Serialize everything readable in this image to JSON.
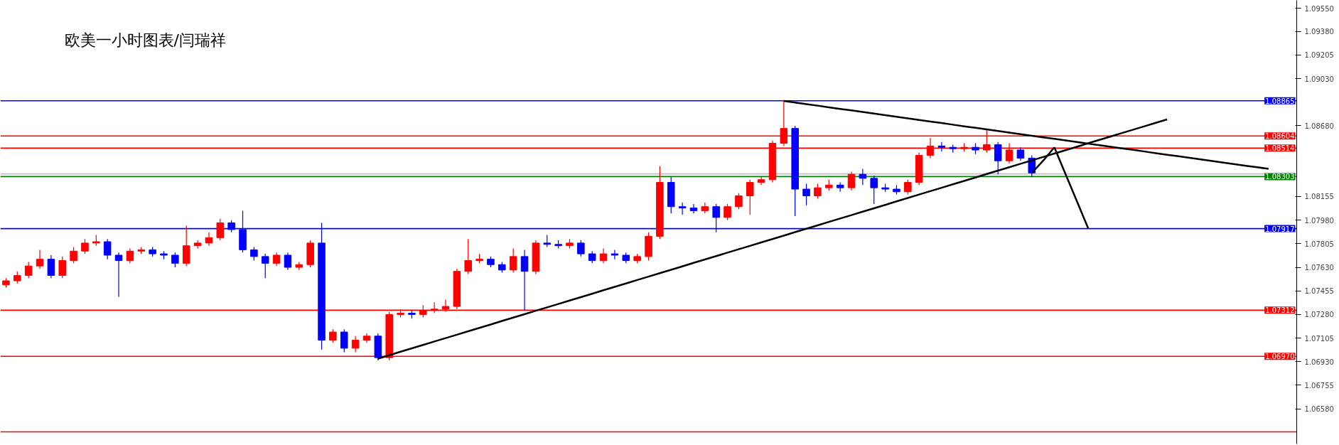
{
  "chart_data": {
    "type": "candlestick",
    "title": "欧美一小时图表/闫瑞祥",
    "categories": [
      null,
      null,
      null,
      null,
      null,
      null,
      null,
      null,
      null,
      null,
      null,
      null,
      null,
      null,
      null,
      null,
      null,
      null,
      null,
      null,
      null,
      null,
      null,
      null,
      null,
      null,
      null,
      null,
      null,
      null,
      null,
      null,
      null,
      null,
      null,
      null,
      null,
      null,
      null,
      null,
      null,
      null,
      null,
      null,
      null,
      null,
      null,
      null,
      null,
      null,
      null,
      null,
      null,
      null,
      null,
      null,
      null,
      null,
      null,
      null,
      null,
      null,
      null,
      null,
      null,
      null,
      null,
      null,
      null,
      null,
      null,
      null,
      null,
      null,
      null,
      null,
      null,
      null,
      null,
      null,
      null,
      null,
      null,
      null,
      null,
      null,
      null,
      null,
      null,
      null,
      null,
      null,
      null,
      null,
      null,
      null,
      null,
      null,
      null,
      null,
      null,
      null,
      null,
      null,
      null,
      null,
      null,
      null,
      null,
      null,
      null,
      null,
      null,
      null,
      null
    ],
    "ohlc": [
      [
        1.075,
        1.0755,
        1.0748,
        1.0753
      ],
      [
        1.0753,
        1.076,
        1.0751,
        1.0757
      ],
      [
        1.0757,
        1.0767,
        1.0755,
        1.0764
      ],
      [
        1.0764,
        1.0776,
        1.0762,
        1.0769
      ],
      [
        1.0769,
        1.0772,
        1.0755,
        1.0757
      ],
      [
        1.0757,
        1.0771,
        1.0755,
        1.0768
      ],
      [
        1.0768,
        1.0778,
        1.0766,
        1.0775
      ],
      [
        1.0775,
        1.0784,
        1.0773,
        1.0781
      ],
      [
        1.0781,
        1.0787,
        1.0779,
        1.0782
      ],
      [
        1.0782,
        1.0784,
        1.0769,
        1.0772
      ],
      [
        1.0772,
        1.0774,
        1.0741,
        1.0768
      ],
      [
        1.0768,
        1.0777,
        1.0766,
        1.0775
      ],
      [
        1.0775,
        1.0778,
        1.0773,
        1.0776
      ],
      [
        1.0776,
        1.0778,
        1.0771,
        1.0773
      ],
      [
        1.0773,
        1.0775,
        1.0769,
        1.0772
      ],
      [
        1.0772,
        1.0774,
        1.0763,
        1.0766
      ],
      [
        1.0766,
        1.0794,
        1.0764,
        1.0779
      ],
      [
        1.0779,
        1.0783,
        1.0777,
        1.0781
      ],
      [
        1.0781,
        1.0789,
        1.0779,
        1.0785
      ],
      [
        1.0785,
        1.0799,
        1.0783,
        1.0796
      ],
      [
        1.0796,
        1.0798,
        1.0789,
        1.0791
      ],
      [
        1.0791,
        1.0805,
        1.0774,
        1.0776
      ],
      [
        1.0776,
        1.0778,
        1.0768,
        1.0771
      ],
      [
        1.0771,
        1.0773,
        1.0755,
        1.0766
      ],
      [
        1.0766,
        1.0774,
        1.0764,
        1.0772
      ],
      [
        1.0772,
        1.0774,
        1.0761,
        1.0763
      ],
      [
        1.0763,
        1.0767,
        1.0761,
        1.0765
      ],
      [
        1.0765,
        1.0783,
        1.0763,
        1.0781
      ],
      [
        1.0781,
        1.0796,
        1.0702,
        1.0709
      ],
      [
        1.0709,
        1.0717,
        1.0707,
        1.0715
      ],
      [
        1.0715,
        1.0717,
        1.07,
        1.0703
      ],
      [
        1.0703,
        1.0712,
        1.07,
        1.0709
      ],
      [
        1.0709,
        1.0714,
        1.0707,
        1.0712
      ],
      [
        1.0712,
        1.0714,
        1.0694,
        1.0696
      ],
      [
        1.0696,
        1.073,
        1.0694,
        1.0728
      ],
      [
        1.0728,
        1.0732,
        1.0726,
        1.0729
      ],
      [
        1.0729,
        1.0731,
        1.0725,
        1.0728
      ],
      [
        1.0728,
        1.0735,
        1.0726,
        1.0731
      ],
      [
        1.0731,
        1.0737,
        1.0729,
        1.0732
      ],
      [
        1.0732,
        1.0739,
        1.073,
        1.0734
      ],
      [
        1.0734,
        1.0762,
        1.0732,
        1.076
      ],
      [
        1.076,
        1.0784,
        1.0758,
        1.0768
      ],
      [
        1.0768,
        1.0773,
        1.0766,
        1.0769
      ],
      [
        1.0769,
        1.0771,
        1.0763,
        1.0765
      ],
      [
        1.0765,
        1.0767,
        1.0759,
        1.0761
      ],
      [
        1.0761,
        1.0777,
        1.0759,
        1.0771
      ],
      [
        1.0771,
        1.0776,
        1.0731,
        1.076
      ],
      [
        1.076,
        1.0783,
        1.0758,
        1.0781
      ],
      [
        1.0781,
        1.0787,
        1.0778,
        1.078
      ],
      [
        1.078,
        1.0783,
        1.0777,
        1.0779
      ],
      [
        1.0779,
        1.0784,
        1.0777,
        1.0781
      ],
      [
        1.0781,
        1.0783,
        1.0771,
        1.0773
      ],
      [
        1.0773,
        1.0775,
        1.0766,
        1.0768
      ],
      [
        1.0768,
        1.0777,
        1.0766,
        1.0773
      ],
      [
        1.0773,
        1.0776,
        1.0769,
        1.0772
      ],
      [
        1.0772,
        1.0774,
        1.0766,
        1.0768
      ],
      [
        1.0768,
        1.0773,
        1.0766,
        1.0771
      ],
      [
        1.0771,
        1.0789,
        1.0768,
        1.0786
      ],
      [
        1.0786,
        1.0838,
        1.0784,
        1.0826
      ],
      [
        1.0826,
        1.083,
        1.0803,
        1.0808
      ],
      [
        1.0808,
        1.0811,
        1.0802,
        1.0807
      ],
      [
        1.0807,
        1.081,
        1.0803,
        1.0805
      ],
      [
        1.0805,
        1.0811,
        1.0803,
        1.0808
      ],
      [
        1.0808,
        1.081,
        1.0789,
        1.08
      ],
      [
        1.08,
        1.081,
        1.0798,
        1.0808
      ],
      [
        1.0808,
        1.0818,
        1.0806,
        1.0816
      ],
      [
        1.0816,
        1.0828,
        1.0802,
        1.0826
      ],
      [
        1.0826,
        1.083,
        1.0824,
        1.0828
      ],
      [
        1.0828,
        1.0857,
        1.0826,
        1.0855
      ],
      [
        1.0855,
        1.0887,
        1.0853,
        1.0866
      ],
      [
        1.0866,
        1.0868,
        1.0801,
        1.0821
      ],
      [
        1.0821,
        1.0825,
        1.0809,
        1.0816
      ],
      [
        1.0816,
        1.0825,
        1.0814,
        1.0822
      ],
      [
        1.0822,
        1.0828,
        1.082,
        1.0824
      ],
      [
        1.0824,
        1.0826,
        1.0819,
        1.0822
      ],
      [
        1.0822,
        1.0834,
        1.082,
        1.0832
      ],
      [
        1.0832,
        1.0836,
        1.0824,
        1.0829
      ],
      [
        1.0829,
        1.0831,
        1.081,
        1.0822
      ],
      [
        1.0822,
        1.0825,
        1.0819,
        1.0821
      ],
      [
        1.0821,
        1.0824,
        1.0817,
        1.0819
      ],
      [
        1.0819,
        1.0828,
        1.0817,
        1.0826
      ],
      [
        1.0826,
        1.0848,
        1.0824,
        1.0846
      ],
      [
        1.0846,
        1.0859,
        1.0844,
        1.0853
      ],
      [
        1.0853,
        1.0856,
        1.0849,
        1.0852
      ],
      [
        1.0852,
        1.0854,
        1.0848,
        1.0851
      ],
      [
        1.0851,
        1.0855,
        1.0849,
        1.0852
      ],
      [
        1.0852,
        1.0855,
        1.0847,
        1.085
      ],
      [
        1.085,
        1.0865,
        1.0848,
        1.0854
      ],
      [
        1.0854,
        1.0856,
        1.0832,
        1.0842
      ],
      [
        1.0842,
        1.0855,
        1.084,
        1.085
      ],
      [
        1.085,
        1.0852,
        1.0842,
        1.0844
      ],
      [
        1.0844,
        1.0846,
        1.083,
        1.0833
      ],
      null,
      null,
      null,
      null,
      null,
      null,
      null,
      null,
      null,
      null,
      null,
      null,
      null,
      null,
      null,
      null,
      null,
      null,
      null,
      null,
      null,
      null,
      null
    ],
    "colors": [
      "#ff0000",
      "#ff0000",
      "#ff0000",
      "#ff0000",
      "#0000ff",
      "#ff0000",
      "#ff0000",
      "#ff0000",
      "#ff0000",
      "#0000ff",
      "#0000ff",
      "#ff0000",
      "#ff0000",
      "#0000ff",
      "#0000ff",
      "#0000ff",
      "#ff0000",
      "#ff0000",
      "#ff0000",
      "#ff0000",
      "#0000ff",
      "#0000ff",
      "#0000ff",
      "#0000ff",
      "#ff0000",
      "#0000ff",
      "#ff0000",
      "#ff0000",
      "#0000ff",
      "#ff0000",
      "#0000ff",
      "#ff0000",
      "#ff0000",
      "#0000ff",
      "#ff0000",
      "#ff0000",
      "#0000ff",
      "#ff0000",
      "#ff0000",
      "#ff0000",
      "#ff0000",
      "#ff0000",
      "#ff0000",
      "#0000ff",
      "#0000ff",
      "#ff0000",
      "#0000ff",
      "#ff0000",
      "#0000ff",
      "#0000ff",
      "#ff0000",
      "#0000ff",
      "#0000ff",
      "#ff0000",
      "#0000ff",
      "#0000ff",
      "#ff0000",
      "#ff0000",
      "#ff0000",
      "#0000ff",
      "#0000ff",
      "#0000ff",
      "#ff0000",
      "#0000ff",
      "#ff0000",
      "#ff0000",
      "#ff0000",
      "#ff0000",
      "#ff0000",
      "#ff0000",
      "#0000ff",
      "#0000ff",
      "#ff0000",
      "#ff0000",
      "#0000ff",
      "#ff0000",
      "#0000ff",
      "#0000ff",
      "#0000ff",
      "#0000ff",
      "#ff0000",
      "#ff0000",
      "#ff0000",
      "#0000ff",
      "#0000ff",
      "#ff0000",
      "#0000ff",
      "#ff0000",
      "#0000ff",
      "#ff0000",
      "#0000ff",
      "#0000ff",
      null,
      null,
      null,
      null,
      null,
      null,
      null,
      null,
      null,
      null,
      null,
      null,
      null,
      null,
      null,
      null,
      null,
      null,
      null,
      null,
      null,
      null,
      null
    ],
    "series": [
      {
        "type": "line",
        "color": "#000000",
        "values": [
          null,
          null,
          null,
          null,
          null,
          null,
          null,
          null,
          null,
          null,
          null,
          null,
          null,
          null,
          null,
          null,
          null,
          null,
          null,
          null,
          null,
          null,
          null,
          null,
          null,
          null,
          null,
          null,
          null,
          null,
          null,
          null,
          null,
          1.06953,
          1.06978,
          1.07004,
          1.07029,
          1.07054,
          1.0708,
          1.07105,
          1.0713,
          1.07156,
          1.07181,
          1.07206,
          1.07232,
          1.07257,
          1.07282,
          1.07308,
          1.07333,
          1.07358,
          1.07384,
          1.07409,
          1.07434,
          1.0746,
          1.07485,
          1.0751,
          1.07536,
          1.07561,
          1.07587,
          1.07612,
          1.07637,
          1.07663,
          1.07688,
          1.07713,
          1.07739,
          1.07764,
          1.07789,
          1.07815,
          1.0784,
          1.07865,
          1.07891,
          1.07916,
          1.07941,
          1.07967,
          1.07992,
          1.08017,
          1.08043,
          1.08068,
          1.08093,
          1.08119,
          1.08144,
          1.0817,
          1.08195,
          1.0822,
          1.08246,
          1.08271,
          1.08296,
          1.08322,
          1.08347,
          1.08372,
          1.08398,
          1.08423,
          1.08448,
          1.08474,
          1.08499,
          1.08524,
          1.0855,
          1.08575,
          1.086,
          1.08626,
          1.08651,
          1.08676,
          1.08702,
          1.08727,
          null,
          null,
          null,
          null,
          null,
          null,
          null,
          null,
          null,
          null,
          null
        ]
      },
      {
        "type": "line",
        "color": "#000000",
        "values": [
          null,
          null,
          null,
          null,
          null,
          null,
          null,
          null,
          null,
          null,
          null,
          null,
          null,
          null,
          null,
          null,
          null,
          null,
          null,
          null,
          null,
          null,
          null,
          null,
          null,
          null,
          null,
          null,
          null,
          null,
          null,
          null,
          null,
          null,
          null,
          null,
          null,
          null,
          null,
          null,
          null,
          null,
          null,
          null,
          null,
          null,
          null,
          null,
          null,
          null,
          null,
          null,
          null,
          null,
          null,
          null,
          null,
          null,
          null,
          null,
          null,
          null,
          null,
          null,
          null,
          null,
          null,
          null,
          null,
          1.08864,
          1.08852,
          1.0884,
          1.08829,
          1.08817,
          1.08805,
          1.08794,
          1.08782,
          1.0877,
          1.08758,
          1.08747,
          1.08735,
          1.08723,
          1.08711,
          1.087,
          1.08688,
          1.08676,
          1.08665,
          1.08653,
          1.08641,
          1.08629,
          1.08618,
          1.08606,
          1.08594,
          1.08583,
          1.08571,
          1.08559,
          1.08547,
          1.08536,
          1.08524,
          1.08512,
          1.08501,
          1.08489,
          1.08477,
          1.08465,
          1.08454,
          1.08442,
          1.0843,
          1.08418,
          1.08407,
          1.08395,
          1.08383,
          1.08372,
          1.0836,
          null,
          null
        ]
      },
      {
        "type": "line",
        "color": "#000000",
        "values": [
          null,
          null,
          null,
          null,
          null,
          null,
          null,
          null,
          null,
          null,
          null,
          null,
          null,
          null,
          null,
          null,
          null,
          null,
          null,
          null,
          null,
          null,
          null,
          null,
          null,
          null,
          null,
          null,
          null,
          null,
          null,
          null,
          null,
          null,
          null,
          null,
          null,
          null,
          null,
          null,
          null,
          null,
          null,
          null,
          null,
          null,
          null,
          null,
          null,
          null,
          null,
          null,
          null,
          null,
          null,
          null,
          null,
          null,
          null,
          null,
          null,
          null,
          null,
          null,
          null,
          null,
          null,
          null,
          null,
          null,
          null,
          null,
          null,
          null,
          null,
          null,
          null,
          null,
          null,
          null,
          null,
          null,
          null,
          null,
          null,
          null,
          null,
          null,
          null,
          null,
          null,
          1.0833,
          1.0842,
          1.0852,
          null,
          null,
          null,
          null,
          null,
          null,
          null,
          null,
          null,
          null,
          null,
          null,
          null,
          null,
          null,
          null,
          null,
          null,
          null,
          null,
          null
        ]
      },
      {
        "type": "line",
        "color": "#000000",
        "values": [
          null,
          null,
          null,
          null,
          null,
          null,
          null,
          null,
          null,
          null,
          null,
          null,
          null,
          null,
          null,
          null,
          null,
          null,
          null,
          null,
          null,
          null,
          null,
          null,
          null,
          null,
          null,
          null,
          null,
          null,
          null,
          null,
          null,
          null,
          null,
          null,
          null,
          null,
          null,
          null,
          null,
          null,
          null,
          null,
          null,
          null,
          null,
          null,
          null,
          null,
          null,
          null,
          null,
          null,
          null,
          null,
          null,
          null,
          null,
          null,
          null,
          null,
          null,
          null,
          null,
          null,
          null,
          null,
          null,
          null,
          null,
          null,
          null,
          null,
          null,
          null,
          null,
          null,
          null,
          null,
          null,
          null,
          null,
          null,
          null,
          null,
          null,
          null,
          null,
          null,
          null,
          null,
          null,
          1.0852,
          1.0832,
          1.0812,
          1.0792,
          null,
          null,
          null,
          null,
          null,
          null,
          null,
          null,
          null,
          null,
          null,
          null,
          null,
          null,
          null,
          null,
          null,
          null
        ]
      }
    ],
    "ref_lines": [
      {
        "axis": "y",
        "value": 1.08865,
        "label": "1.08865",
        "color": "#0000ff"
      },
      {
        "axis": "y",
        "value": 1.08604,
        "label": "1.08604",
        "color": "#ff0000"
      },
      {
        "axis": "y",
        "value": 1.08514,
        "label": "1.08514",
        "color": "#ff0000"
      },
      {
        "axis": "y",
        "value": 1.08323,
        "color": "#c0c0c0"
      },
      {
        "axis": "y",
        "value": 1.08303,
        "label": "1.08303",
        "color": "#008000"
      },
      {
        "axis": "y",
        "value": 1.07917,
        "label": "1.07917",
        "color": "#0000ff"
      },
      {
        "axis": "y",
        "value": 1.07312,
        "label": "1.07312",
        "color": "#ff0000"
      },
      {
        "axis": "y",
        "value": 1.0697,
        "label": "1.06970",
        "color": "#ff0000"
      },
      {
        "axis": "y",
        "value": 1.0641,
        "color": "#ff0000"
      }
    ],
    "ylim": [
      1.0632,
      1.0961
    ],
    "yticks": [
      {
        "value": 1.0955,
        "label": "1.09550"
      },
      {
        "value": 1.0938,
        "label": "1.09380"
      },
      {
        "value": 1.09205,
        "label": "1.09205"
      },
      {
        "value": 1.0903,
        "label": "1.09030"
      },
      {
        "value": 1.0868,
        "label": "1.08680"
      },
      {
        "value": 1.08155,
        "label": "1.08155"
      },
      {
        "value": 1.0798,
        "label": "1.07980"
      },
      {
        "value": 1.07805,
        "label": "1.07805"
      },
      {
        "value": 1.0763,
        "label": "1.07630"
      },
      {
        "value": 1.07455,
        "label": "1.07455"
      },
      {
        "value": 1.0728,
        "label": "1.07280"
      },
      {
        "value": 1.07105,
        "label": "1.07105"
      },
      {
        "value": 1.0693,
        "label": "1.06930"
      },
      {
        "value": 1.06755,
        "label": "1.06755"
      },
      {
        "value": 1.0658,
        "label": "1.06580"
      }
    ],
    "tick_labels": "y",
    "grid": false
  }
}
